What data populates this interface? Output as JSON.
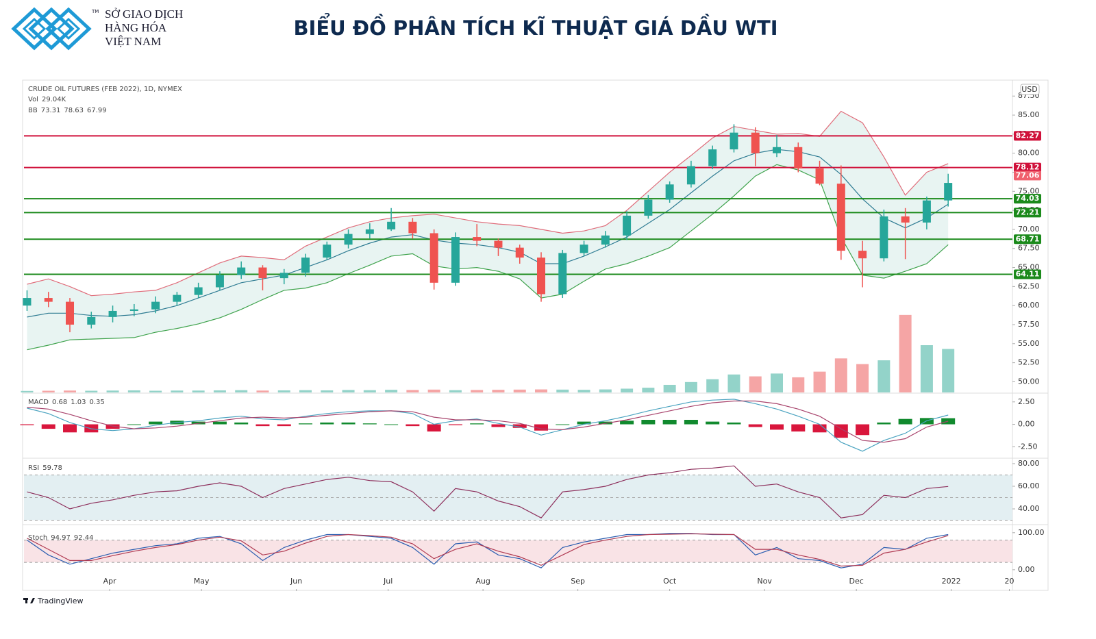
{
  "header": {
    "logo_lines": [
      "SỞ GIAO DỊCH",
      "HÀNG HÓA",
      "VIỆT NAM"
    ],
    "tm": "TM",
    "title": "BIỂU ĐỒ PHÂN TÍCH KĨ THUẬT GIÁ DẦU WTI"
  },
  "chart_data": {
    "type": "candlestick",
    "title": "CRUDE OIL FUTURES (FEB 2022), 1D, NYMEX",
    "currency": "USD",
    "x": [
      64,
      71,
      78,
      85,
      92,
      99,
      106,
      113,
      120,
      127,
      134,
      141,
      148,
      155,
      162,
      169,
      176,
      183,
      190,
      197,
      204,
      211,
      218,
      225,
      232,
      239,
      246,
      253,
      260,
      267,
      274,
      281,
      288,
      295,
      302,
      309,
      316,
      323,
      330,
      337,
      344,
      351,
      358,
      365
    ],
    "xlim": [
      63,
      386
    ],
    "xticks": [
      {
        "value": 91,
        "label": "Apr"
      },
      {
        "value": 121,
        "label": "May"
      },
      {
        "value": 152,
        "label": "Jun"
      },
      {
        "value": 182,
        "label": "Jul"
      },
      {
        "value": 213,
        "label": "Aug"
      },
      {
        "value": 244,
        "label": "Sep"
      },
      {
        "value": 274,
        "label": "Oct"
      },
      {
        "value": 305,
        "label": "Nov"
      },
      {
        "value": 335,
        "label": "Dec"
      },
      {
        "value": 366,
        "label": "2022"
      },
      {
        "value": 385,
        "label": "20"
      }
    ],
    "open": [
      60,
      61,
      60.5,
      57.5,
      58.5,
      59.3,
      59.5,
      60.5,
      61.4,
      62.4,
      64,
      65,
      63.6,
      64.3,
      66.3,
      68,
      69.4,
      70,
      71,
      69.5,
      63,
      69,
      68.5,
      67.6,
      66.3,
      61.5,
      66.9,
      68,
      69.2,
      71.8,
      73.9,
      75.9,
      78.3,
      80.5,
      82.7,
      80,
      80.8,
      78,
      76,
      67.2,
      66.2,
      71.7,
      70.9,
      73.8
    ],
    "high": [
      62,
      61.8,
      61,
      59.2,
      60,
      60.2,
      61.2,
      61.8,
      63,
      64.5,
      65.8,
      65.3,
      64.8,
      66.8,
      68.4,
      70,
      70.8,
      72.8,
      71.5,
      70,
      69.6,
      70.7,
      68.8,
      68,
      67,
      67.3,
      68.5,
      69.8,
      72.4,
      74.5,
      76.3,
      79,
      81,
      83.8,
      83.4,
      82.4,
      81.4,
      79,
      78.4,
      68.5,
      72.6,
      72.8,
      74.3,
      77.3
    ],
    "low": [
      59.3,
      59.8,
      56.5,
      57,
      57.8,
      58.6,
      59,
      60,
      61,
      62,
      63.5,
      62,
      62.8,
      63.8,
      66,
      67.5,
      68.8,
      69.8,
      68.8,
      62.1,
      62.6,
      67.8,
      66.5,
      65.5,
      60.5,
      61,
      66.5,
      67.6,
      68.6,
      71.4,
      73.5,
      75.5,
      77.9,
      80.1,
      78.3,
      79.5,
      77.5,
      75.8,
      66,
      62.4,
      65.8,
      66.1,
      70,
      73
    ],
    "close": [
      61,
      60.5,
      57.5,
      58.5,
      59.3,
      59.5,
      60.5,
      61.4,
      62.4,
      64,
      65,
      63.6,
      64.3,
      66.3,
      68,
      69.4,
      70,
      71,
      69.5,
      63,
      69,
      68.5,
      67.6,
      66.3,
      61.5,
      66.9,
      68,
      69.2,
      71.8,
      73.9,
      75.9,
      78.3,
      80.5,
      82.7,
      80,
      80.8,
      78,
      76,
      67.2,
      66.2,
      71.7,
      70.9,
      73.8,
      76.1
    ],
    "up_color": "#26a69a",
    "down_color": "#ef5350",
    "ylim": [
      48.6,
      89.5
    ],
    "yticks": [
      {
        "value": 50,
        "label": "50.00"
      },
      {
        "value": 52.5,
        "label": "52.50"
      },
      {
        "value": 55,
        "label": "55.00"
      },
      {
        "value": 57.5,
        "label": "57.50"
      },
      {
        "value": 60,
        "label": "60.00"
      },
      {
        "value": 62.5,
        "label": "62.50"
      },
      {
        "value": 65,
        "label": "65.00"
      },
      {
        "value": 67.5,
        "label": "67.50"
      },
      {
        "value": 70,
        "label": "70.00"
      },
      {
        "value": 72.5,
        "label": "72.50"
      },
      {
        "value": 75,
        "label": "75.00"
      },
      {
        "value": 77.5,
        "label": "77.50"
      },
      {
        "value": 80,
        "label": "80.00"
      },
      {
        "value": 82.5,
        "label": "82.50"
      },
      {
        "value": 85,
        "label": "85.00"
      },
      {
        "value": 87.5,
        "label": "87.50"
      }
    ],
    "last_price": 77.06,
    "levels": [
      {
        "value": 82.27,
        "color": "#d0103a"
      },
      {
        "value": 78.12,
        "color": "#d0103a"
      },
      {
        "value": 74.03,
        "color": "#1b8a1b"
      },
      {
        "value": 72.21,
        "color": "#1b8a1b"
      },
      {
        "value": 68.71,
        "color": "#1b8a1b"
      },
      {
        "value": 64.11,
        "color": "#1b8a1b"
      }
    ],
    "volume": {
      "label": "Vol",
      "last": {
        "value": 29.04,
        "label": "29.04K"
      },
      "lim": [
        0,
        500
      ],
      "values": [
        8,
        9,
        10,
        9,
        10,
        11,
        9,
        10,
        10,
        11,
        12,
        10,
        11,
        12,
        11,
        13,
        12,
        14,
        13,
        15,
        12,
        13,
        14,
        15,
        16,
        15,
        14,
        16,
        20,
        25,
        40,
        55,
        70,
        95,
        85,
        100,
        80,
        110,
        180,
        150,
        170,
        410,
        250,
        230
      ]
    },
    "bb": {
      "label": "BB",
      "readout": [
        73.31,
        78.63,
        67.99
      ],
      "upper": [
        62.8,
        63.5,
        62.5,
        61.3,
        61.5,
        61.8,
        62.0,
        63.0,
        64.3,
        65.6,
        66.5,
        66.3,
        66.0,
        67.8,
        69.0,
        70.2,
        71.0,
        71.5,
        71.8,
        72.0,
        71.5,
        71.0,
        70.7,
        70.5,
        70.0,
        69.5,
        69.8,
        70.5,
        72.5,
        75.0,
        77.5,
        79.7,
        82.0,
        83.5,
        83.0,
        82.5,
        82.6,
        82.2,
        85.5,
        84.0,
        79.5,
        74.5,
        77.5,
        78.63
      ],
      "middle": [
        58.5,
        59.0,
        59.0,
        58.7,
        58.6,
        58.8,
        59.3,
        60.0,
        61.0,
        62.0,
        63.0,
        63.5,
        64.0,
        65.0,
        66.0,
        67.2,
        68.2,
        69.0,
        69.3,
        68.6,
        68.2,
        68.0,
        67.6,
        67.0,
        65.5,
        65.5,
        66.5,
        67.7,
        69.0,
        70.8,
        72.6,
        74.8,
        77.0,
        79.0,
        80.0,
        80.5,
        80.2,
        79.5,
        77.2,
        74.0,
        71.5,
        70.2,
        71.5,
        73.31
      ],
      "lower": [
        54.2,
        54.8,
        55.5,
        55.6,
        55.7,
        55.8,
        56.5,
        57.0,
        57.6,
        58.4,
        59.5,
        60.8,
        62.0,
        62.3,
        63.0,
        64.2,
        65.3,
        66.5,
        66.8,
        65.2,
        64.8,
        65.0,
        64.5,
        63.5,
        61.0,
        61.5,
        63.2,
        64.8,
        65.5,
        66.5,
        67.6,
        69.8,
        72.0,
        74.4,
        77.0,
        78.5,
        77.8,
        76.5,
        69.0,
        64.0,
        63.6,
        64.5,
        65.5,
        67.99
      ]
    },
    "macd": {
      "label": "MACD",
      "readout": [
        0.68,
        1.03,
        0.35
      ],
      "ylim": [
        -3.7,
        3.4
      ],
      "yticks": [
        {
          "value": 2.5,
          "label": "2.50"
        },
        {
          "value": 0,
          "label": "0.00"
        },
        {
          "value": -2.5,
          "label": "-2.50"
        }
      ],
      "histogram": [
        -0.1,
        -0.5,
        -0.9,
        -0.9,
        -0.5,
        0.0,
        0.3,
        0.4,
        0.3,
        0.3,
        0.2,
        -0.2,
        -0.2,
        0.1,
        0.2,
        0.2,
        0.1,
        0.0,
        -0.2,
        -0.8,
        -0.1,
        0.1,
        -0.3,
        -0.4,
        -0.7,
        0.0,
        0.3,
        0.3,
        0.4,
        0.5,
        0.5,
        0.5,
        0.3,
        0.2,
        -0.3,
        -0.6,
        -0.8,
        -0.9,
        -1.5,
        -1.2,
        0.2,
        0.6,
        0.7,
        0.68
      ],
      "macd": [
        1.8,
        1.2,
        0.2,
        -0.5,
        -0.7,
        -0.5,
        -0.1,
        0.2,
        0.4,
        0.7,
        0.9,
        0.6,
        0.5,
        0.9,
        1.2,
        1.4,
        1.5,
        1.5,
        1.2,
        0.0,
        0.4,
        0.6,
        0.1,
        -0.3,
        -1.2,
        -0.6,
        0.0,
        0.4,
        0.9,
        1.5,
        2.0,
        2.5,
        2.7,
        2.8,
        2.3,
        1.7,
        0.9,
        0.0,
        -2.0,
        -3.0,
        -1.8,
        -1.0,
        0.4,
        1.03
      ],
      "signal": [
        1.9,
        1.7,
        1.1,
        0.4,
        -0.2,
        -0.5,
        -0.4,
        -0.2,
        0.1,
        0.4,
        0.7,
        0.8,
        0.7,
        0.8,
        1.0,
        1.2,
        1.4,
        1.5,
        1.4,
        0.8,
        0.5,
        0.5,
        0.4,
        0.1,
        -0.5,
        -0.6,
        -0.3,
        0.1,
        0.5,
        1.0,
        1.5,
        2.0,
        2.4,
        2.6,
        2.6,
        2.3,
        1.7,
        0.9,
        -0.5,
        -1.8,
        -2.0,
        -1.6,
        -0.3,
        0.35
      ]
    },
    "rsi": {
      "label": "RSI",
      "readout": 59.78,
      "ylim": [
        26.7,
        84.2
      ],
      "yticks": [
        {
          "value": 80,
          "label": "80.00"
        },
        {
          "value": 60,
          "label": "60.00"
        },
        {
          "value": 40,
          "label": "40.00"
        }
      ],
      "band": [
        30,
        70
      ],
      "mid": 50,
      "values": [
        55,
        50,
        40,
        45,
        48,
        52,
        55,
        56,
        60,
        63,
        60,
        50,
        58,
        62,
        66,
        68,
        65,
        64,
        55,
        38,
        58,
        55,
        47,
        42,
        32,
        55,
        57,
        60,
        66,
        70,
        72,
        75,
        76,
        78,
        60,
        62,
        55,
        50,
        32,
        35,
        52,
        50,
        58,
        59.78
      ]
    },
    "stoch": {
      "label": "Stoch",
      "readout": [
        94.97,
        92.44
      ],
      "ylim": [
        -52,
        120
      ],
      "yticks": [
        {
          "value": 100,
          "label": "100.00"
        },
        {
          "value": 0,
          "label": "0.00"
        }
      ],
      "band": [
        20,
        80
      ],
      "k": [
        80,
        40,
        15,
        30,
        45,
        55,
        65,
        70,
        85,
        90,
        70,
        25,
        60,
        80,
        95,
        95,
        90,
        85,
        60,
        15,
        70,
        75,
        40,
        30,
        5,
        60,
        75,
        85,
        95,
        95,
        98,
        98,
        95,
        95,
        40,
        60,
        30,
        25,
        5,
        15,
        60,
        55,
        85,
        94.97
      ],
      "d": [
        85,
        55,
        25,
        25,
        38,
        50,
        60,
        68,
        80,
        88,
        78,
        40,
        50,
        72,
        90,
        95,
        92,
        88,
        70,
        30,
        55,
        70,
        50,
        35,
        12,
        40,
        68,
        80,
        90,
        95,
        96,
        97,
        96,
        95,
        55,
        55,
        40,
        28,
        10,
        12,
        45,
        55,
        75,
        92.44
      ]
    }
  },
  "footer": {
    "brand": "TradingView"
  }
}
